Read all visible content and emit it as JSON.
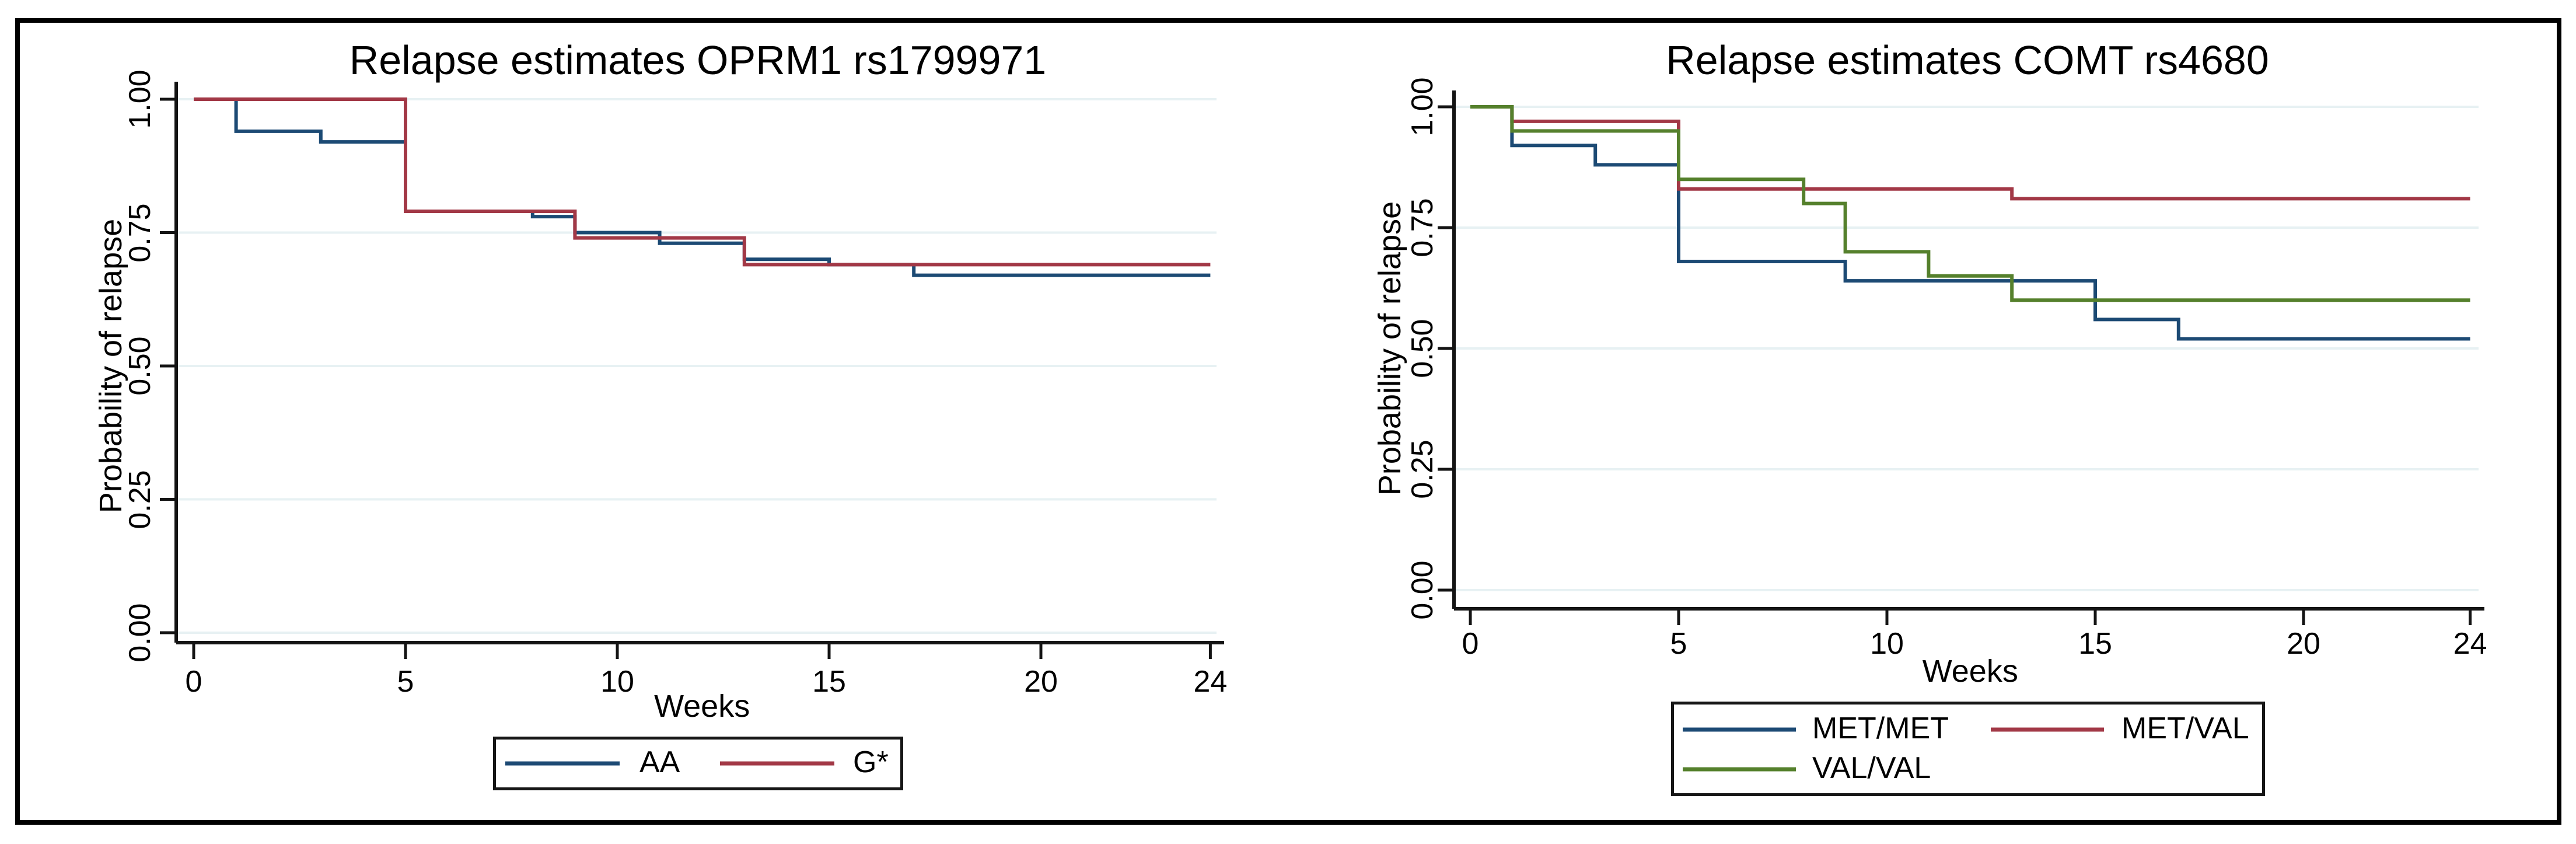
{
  "figure": {
    "background": "#ffffff",
    "border_color": "#000000"
  },
  "colors": {
    "grid": "#e7f1f3",
    "axis": "#141414",
    "text": "#000000",
    "legend_border": "#161616"
  },
  "chart_data": [
    {
      "type": "line",
      "subtype": "kaplan-meier-step",
      "title": "Relapse estimates OPRM1 rs1799971",
      "xlabel": "Weeks",
      "ylabel": "Probability of relapse",
      "xlim": [
        0,
        24
      ],
      "ylim": [
        0.0,
        1.0
      ],
      "x_ticks": [
        "0",
        "5",
        "10",
        "15",
        "20",
        "24"
      ],
      "y_ticks": [
        "1.00",
        "0.75",
        "0.50",
        "0.25",
        "0.00"
      ],
      "grid": true,
      "legend_position": "bottom",
      "series": [
        {
          "name": "AA",
          "color": "#1c4a74",
          "points": [
            [
              0,
              1.0
            ],
            [
              1,
              0.94
            ],
            [
              3,
              0.92
            ],
            [
              5,
              0.79
            ],
            [
              8,
              0.78
            ],
            [
              9,
              0.75
            ],
            [
              11,
              0.73
            ],
            [
              13,
              0.7
            ],
            [
              15,
              0.69
            ],
            [
              17,
              0.67
            ],
            [
              24,
              0.67
            ]
          ]
        },
        {
          "name": "G*",
          "color": "#a23846",
          "points": [
            [
              0,
              1.0
            ],
            [
              5,
              0.79
            ],
            [
              9,
              0.74
            ],
            [
              13,
              0.69
            ],
            [
              24,
              0.69
            ]
          ]
        }
      ]
    },
    {
      "type": "line",
      "subtype": "kaplan-meier-step",
      "title": "Relapse estimates COMT rs4680",
      "xlabel": "Weeks",
      "ylabel": "Probability of relapse",
      "xlim": [
        0,
        24
      ],
      "ylim": [
        0.0,
        1.0
      ],
      "x_ticks": [
        "0",
        "5",
        "10",
        "15",
        "20",
        "24"
      ],
      "y_ticks": [
        "1.00",
        "0.75",
        "0.50",
        "0.25",
        "0.00"
      ],
      "grid": true,
      "legend_position": "bottom",
      "series": [
        {
          "name": "MET/MET",
          "color": "#1c4a74",
          "points": [
            [
              0,
              1.0
            ],
            [
              1,
              0.92
            ],
            [
              3,
              0.88
            ],
            [
              5,
              0.68
            ],
            [
              9,
              0.64
            ],
            [
              15,
              0.56
            ],
            [
              17,
              0.52
            ],
            [
              24,
              0.52
            ]
          ]
        },
        {
          "name": "MET/VAL",
          "color": "#a23846",
          "points": [
            [
              0,
              1.0
            ],
            [
              1,
              0.97
            ],
            [
              5,
              0.83
            ],
            [
              13,
              0.81
            ],
            [
              24,
              0.81
            ]
          ]
        },
        {
          "name": "VAL/VAL",
          "color": "#55802c",
          "points": [
            [
              0,
              1.0
            ],
            [
              1,
              0.95
            ],
            [
              5,
              0.85
            ],
            [
              8,
              0.8
            ],
            [
              9,
              0.7
            ],
            [
              11,
              0.65
            ],
            [
              13,
              0.6
            ],
            [
              24,
              0.6
            ]
          ]
        }
      ]
    }
  ]
}
